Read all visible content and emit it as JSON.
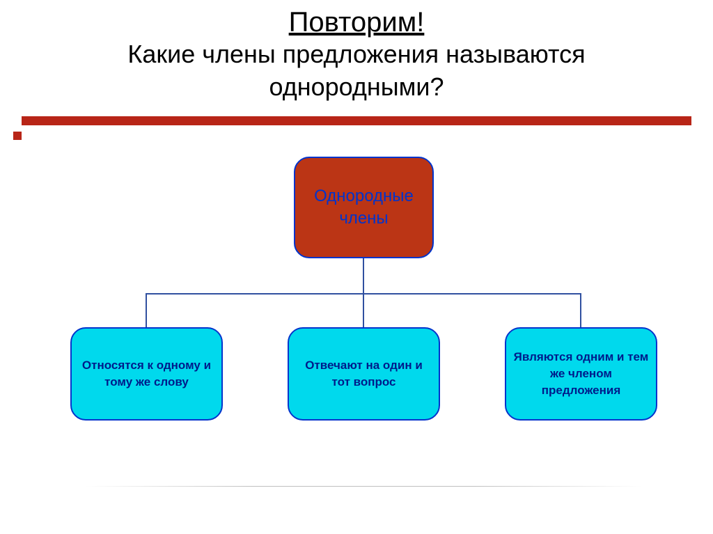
{
  "title": {
    "main": "Повторим!",
    "sub_line1": "Какие члены предложения называются",
    "sub_line2": "однородными?"
  },
  "diagram": {
    "type": "tree",
    "root": {
      "line1": "Однородные",
      "line2": "члены",
      "bg_color": "#bb3515",
      "text_color": "#0033cc",
      "border_color": "#0033cc",
      "border_radius": 22,
      "fontsize": 24
    },
    "children": [
      {
        "text": "Относятся  к одному и тому же слову"
      },
      {
        "text": "Отвечают на один и тот вопрос"
      },
      {
        "text": "Являются одним и тем же членом предложения"
      }
    ],
    "child_style": {
      "bg_color": "#00d9ed",
      "text_color": "#001b8a",
      "border_color": "#0033cc",
      "border_radius": 22,
      "fontsize": 17,
      "font_weight": "bold"
    },
    "connector_color": "#3050a0",
    "connector_width": 2
  },
  "accent_bar": {
    "color": "#b82517",
    "height": 13
  },
  "background_color": "#ffffff"
}
